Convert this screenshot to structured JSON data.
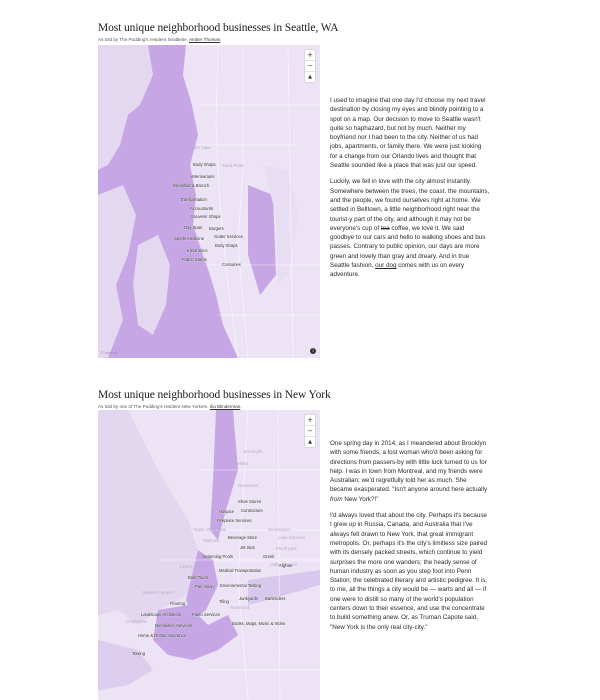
{
  "seattle": {
    "title": "Most unique neighborhood businesses in Seattle, WA",
    "byline_prefix": "As told by The Pudding's resident Seattleite,",
    "byline_author": "Amber Thomas",
    "byline_suffix": ".",
    "map": {
      "zoom_in": "+",
      "zoom_out": "−",
      "reset": "▲",
      "attribution": "© mapbox",
      "info": "i",
      "places": [
        "Bitter Lake",
        "Sand Point"
      ],
      "labels": [
        "Body Shops",
        "Veterinarians",
        "Breakfast & Brunch",
        "Transportation",
        "Accountants",
        "Souvenir Shops",
        "Day Spas",
        "Burgers",
        "Sports Medicine",
        "Gutter Services",
        "Body Shops",
        "Electronics",
        "Fabric Stores",
        "Costumes"
      ]
    },
    "story": {
      "p1": "I used to imagine that one day I'd choose my next travel destination by closing my eyes and blindly pointing to a spot on a map. Our decision to move to Seattle wasn't quite so haphazard, but not by much. Neither my boyfriend nor I had been to the city. Neither of us had jobs, apartments, or family there. We were just looking for a change from our Orlando lives and thought that Seattle sounded like a place that was just our speed.",
      "p2a": "Luckily, we fell in love with the city almost instantly. Somewhere between the trees, the coast, the mountains, and the people, we found ourselves right at home. We settled in Belltown, a little neighborhood right near the tourist-y part of the city, and although it may not be everyone's cup of ",
      "p2_strike": "tea",
      "p2b": " coffee, we love it. We said goodbye to our cars and hello to walking shoes and bus passes. Contrary to public opinion, our days are more green and lovely than gray and dreary. And in true Seattle fashion, ",
      "p2_link": "our dog",
      "p2c": " comes with us on every adventure."
    }
  },
  "newyork": {
    "title": "Most unique neighborhood businesses in New York",
    "byline_prefix": "As told by one of The Pudding's resident New Yorkers,",
    "byline_author": "Ilia Blinderman",
    "byline_suffix": ".",
    "map": {
      "zoom_in": "+",
      "zoom_out": "−",
      "reset": "▲",
      "places": [
        "Greenville",
        "Homefield",
        "Downtown",
        "Kensington",
        "Upper West Side",
        "Lake Success",
        "Midtown",
        "Floral park",
        "Liberty Island",
        "Valley Stream",
        "Meiers Corners",
        "Rosebank",
        "Charleston"
      ],
      "labels": [
        "Shoe Stores",
        "Hospice",
        "Contractors",
        "Fireplace Services",
        "Beverage Store",
        "Jet Skis",
        "Swimming Pools",
        "Greek",
        "Afghan",
        "Medical Transportation",
        "Boat Tours",
        "Pan Asian",
        "Environmental Testing",
        "Flooring",
        "Tiling",
        "Junkyards",
        "Bartenders",
        "Landscape Architects",
        "Piano Services",
        "Demolition Services",
        "Books, Mags, Music & Video",
        "Home & Rental Insurance",
        "Towing"
      ]
    },
    "story": {
      "p1": "One spring day in 2014, as I meandered about Brooklyn with some friends, a lost woman who'd been asking for directions from passers-by with little luck turned to us for help. I was in town from Montreal, and my friends were Australian; we'd regretfully told her as much. She became exasperated. \"Isn't anyone around here actually ",
      "p1_em": "from",
      "p1b": " New York?!\"",
      "p2": "I'd always loved that about the city. Perhaps it's because I grew up in Russia, Canada, and Australia that I've always felt drawn to New York, that great immigrant metropolis. Or, perhaps it's the city's limitless size paired with its densely packed streets, which continue to yield surprises the more one wanders; the heady sense of human industry as soon as you step foot into Penn Station; the celebrated literary and artistic pedigree. It is, to me, all the things a city would be — warts and all — if one were to distill so many of the world's population centers down to their essence, and use the concentrate to build something anew. Or, as Truman Capote said, \"New York is the only real city-city.\""
    },
    "colors": {
      "map_bg": "#e9e0f3",
      "water": "#c6a6e5",
      "accent": "#b89be0"
    }
  }
}
